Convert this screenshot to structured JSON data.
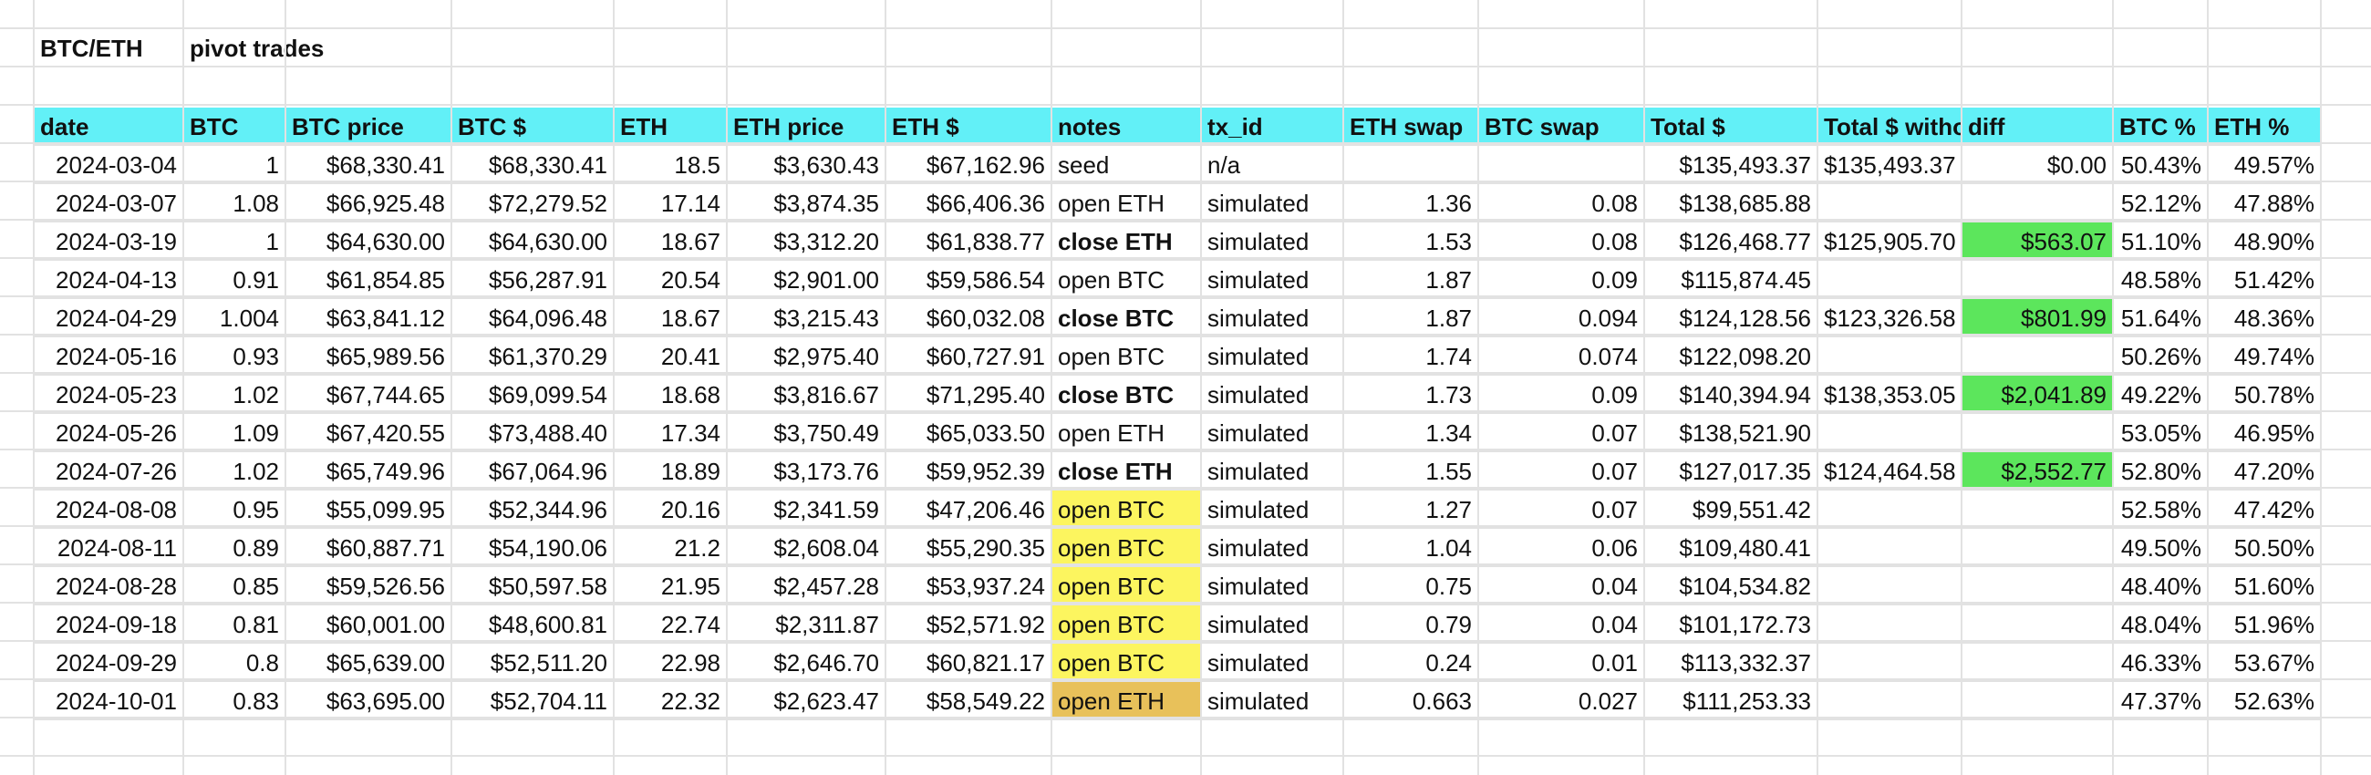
{
  "sheet": {
    "title_pair": "BTC/ETH",
    "title_label": "pivot trades"
  },
  "colors": {
    "header_bg": "#62f0f7",
    "diff_green": "#5ce65c",
    "note_yellow": "#fcf55f",
    "note_orange": "#e8c15a"
  },
  "headers": [
    "date",
    "BTC",
    "BTC price",
    "BTC $",
    "ETH",
    "ETH price",
    "ETH $",
    "notes",
    "tx_id",
    "ETH swap",
    "BTC swap",
    "Total $",
    "Total $ witho",
    "diff",
    "BTC %",
    "ETH %"
  ],
  "rows": [
    {
      "date": "2024-03-04",
      "btc": "1",
      "btc_price": "$68,330.41",
      "btc_usd": "$68,330.41",
      "eth": "18.5",
      "eth_price": "$3,630.43",
      "eth_usd": "$67,162.96",
      "notes": "seed",
      "notes_bold": false,
      "notes_color": "",
      "tx_id": "n/a",
      "eth_swap": "",
      "btc_swap": "",
      "total": "$135,493.37",
      "total_without": "$135,493.37",
      "diff": "$0.00",
      "diff_highlight": false,
      "btc_pct": "50.43%",
      "eth_pct": "49.57%"
    },
    {
      "date": "2024-03-07",
      "btc": "1.08",
      "btc_price": "$66,925.48",
      "btc_usd": "$72,279.52",
      "eth": "17.14",
      "eth_price": "$3,874.35",
      "eth_usd": "$66,406.36",
      "notes": "open ETH",
      "notes_bold": false,
      "notes_color": "",
      "tx_id": "simulated",
      "eth_swap": "1.36",
      "btc_swap": "0.08",
      "total": "$138,685.88",
      "total_without": "",
      "diff": "",
      "diff_highlight": false,
      "btc_pct": "52.12%",
      "eth_pct": "47.88%"
    },
    {
      "date": "2024-03-19",
      "btc": "1",
      "btc_price": "$64,630.00",
      "btc_usd": "$64,630.00",
      "eth": "18.67",
      "eth_price": "$3,312.20",
      "eth_usd": "$61,838.77",
      "notes": "close ETH",
      "notes_bold": true,
      "notes_color": "",
      "tx_id": "simulated",
      "eth_swap": "1.53",
      "btc_swap": "0.08",
      "total": "$126,468.77",
      "total_without": "$125,905.70",
      "diff": "$563.07",
      "diff_highlight": true,
      "btc_pct": "51.10%",
      "eth_pct": "48.90%"
    },
    {
      "date": "2024-04-13",
      "btc": "0.91",
      "btc_price": "$61,854.85",
      "btc_usd": "$56,287.91",
      "eth": "20.54",
      "eth_price": "$2,901.00",
      "eth_usd": "$59,586.54",
      "notes": "open BTC",
      "notes_bold": false,
      "notes_color": "",
      "tx_id": "simulated",
      "eth_swap": "1.87",
      "btc_swap": "0.09",
      "total": "$115,874.45",
      "total_without": "",
      "diff": "",
      "diff_highlight": false,
      "btc_pct": "48.58%",
      "eth_pct": "51.42%"
    },
    {
      "date": "2024-04-29",
      "btc": "1.004",
      "btc_price": "$63,841.12",
      "btc_usd": "$64,096.48",
      "eth": "18.67",
      "eth_price": "$3,215.43",
      "eth_usd": "$60,032.08",
      "notes": "close BTC",
      "notes_bold": true,
      "notes_color": "",
      "tx_id": "simulated",
      "eth_swap": "1.87",
      "btc_swap": "0.094",
      "total": "$124,128.56",
      "total_without": "$123,326.58",
      "diff": "$801.99",
      "diff_highlight": true,
      "btc_pct": "51.64%",
      "eth_pct": "48.36%"
    },
    {
      "date": "2024-05-16",
      "btc": "0.93",
      "btc_price": "$65,989.56",
      "btc_usd": "$61,370.29",
      "eth": "20.41",
      "eth_price": "$2,975.40",
      "eth_usd": "$60,727.91",
      "notes": "open BTC",
      "notes_bold": false,
      "notes_color": "",
      "tx_id": "simulated",
      "eth_swap": "1.74",
      "btc_swap": "0.074",
      "total": "$122,098.20",
      "total_without": "",
      "diff": "",
      "diff_highlight": false,
      "btc_pct": "50.26%",
      "eth_pct": "49.74%"
    },
    {
      "date": "2024-05-23",
      "btc": "1.02",
      "btc_price": "$67,744.65",
      "btc_usd": "$69,099.54",
      "eth": "18.68",
      "eth_price": "$3,816.67",
      "eth_usd": "$71,295.40",
      "notes": "close BTC",
      "notes_bold": true,
      "notes_color": "",
      "tx_id": "simulated",
      "eth_swap": "1.73",
      "btc_swap": "0.09",
      "total": "$140,394.94",
      "total_without": "$138,353.05",
      "diff": "$2,041.89",
      "diff_highlight": true,
      "btc_pct": "49.22%",
      "eth_pct": "50.78%"
    },
    {
      "date": "2024-05-26",
      "btc": "1.09",
      "btc_price": "$67,420.55",
      "btc_usd": "$73,488.40",
      "eth": "17.34",
      "eth_price": "$3,750.49",
      "eth_usd": "$65,033.50",
      "notes": "open ETH",
      "notes_bold": false,
      "notes_color": "",
      "tx_id": "simulated",
      "eth_swap": "1.34",
      "btc_swap": "0.07",
      "total": "$138,521.90",
      "total_without": "",
      "diff": "",
      "diff_highlight": false,
      "btc_pct": "53.05%",
      "eth_pct": "46.95%"
    },
    {
      "date": "2024-07-26",
      "btc": "1.02",
      "btc_price": "$65,749.96",
      "btc_usd": "$67,064.96",
      "eth": "18.89",
      "eth_price": "$3,173.76",
      "eth_usd": "$59,952.39",
      "notes": "close ETH",
      "notes_bold": true,
      "notes_color": "",
      "tx_id": "simulated",
      "eth_swap": "1.55",
      "btc_swap": "0.07",
      "total": "$127,017.35",
      "total_without": "$124,464.58",
      "diff": "$2,552.77",
      "diff_highlight": true,
      "btc_pct": "52.80%",
      "eth_pct": "47.20%"
    },
    {
      "date": "2024-08-08",
      "btc": "0.95",
      "btc_price": "$55,099.95",
      "btc_usd": "$52,344.96",
      "eth": "20.16",
      "eth_price": "$2,341.59",
      "eth_usd": "$47,206.46",
      "notes": "open BTC",
      "notes_bold": false,
      "notes_color": "yellow",
      "tx_id": "simulated",
      "eth_swap": "1.27",
      "btc_swap": "0.07",
      "total": "$99,551.42",
      "total_without": "",
      "diff": "",
      "diff_highlight": false,
      "btc_pct": "52.58%",
      "eth_pct": "47.42%"
    },
    {
      "date": "2024-08-11",
      "btc": "0.89",
      "btc_price": "$60,887.71",
      "btc_usd": "$54,190.06",
      "eth": "21.2",
      "eth_price": "$2,608.04",
      "eth_usd": "$55,290.35",
      "notes": "open BTC",
      "notes_bold": false,
      "notes_color": "yellow",
      "tx_id": "simulated",
      "eth_swap": "1.04",
      "btc_swap": "0.06",
      "total": "$109,480.41",
      "total_without": "",
      "diff": "",
      "diff_highlight": false,
      "btc_pct": "49.50%",
      "eth_pct": "50.50%"
    },
    {
      "date": "2024-08-28",
      "btc": "0.85",
      "btc_price": "$59,526.56",
      "btc_usd": "$50,597.58",
      "eth": "21.95",
      "eth_price": "$2,457.28",
      "eth_usd": "$53,937.24",
      "notes": "open BTC",
      "notes_bold": false,
      "notes_color": "yellow",
      "tx_id": "simulated",
      "eth_swap": "0.75",
      "btc_swap": "0.04",
      "total": "$104,534.82",
      "total_without": "",
      "diff": "",
      "diff_highlight": false,
      "btc_pct": "48.40%",
      "eth_pct": "51.60%"
    },
    {
      "date": "2024-09-18",
      "btc": "0.81",
      "btc_price": "$60,001.00",
      "btc_usd": "$48,600.81",
      "eth": "22.74",
      "eth_price": "$2,311.87",
      "eth_usd": "$52,571.92",
      "notes": "open BTC",
      "notes_bold": false,
      "notes_color": "yellow",
      "tx_id": "simulated",
      "eth_swap": "0.79",
      "btc_swap": "0.04",
      "total": "$101,172.73",
      "total_without": "",
      "diff": "",
      "diff_highlight": false,
      "btc_pct": "48.04%",
      "eth_pct": "51.96%"
    },
    {
      "date": "2024-09-29",
      "btc": "0.8",
      "btc_price": "$65,639.00",
      "btc_usd": "$52,511.20",
      "eth": "22.98",
      "eth_price": "$2,646.70",
      "eth_usd": "$60,821.17",
      "notes": "open BTC",
      "notes_bold": false,
      "notes_color": "yellow",
      "tx_id": "simulated",
      "eth_swap": "0.24",
      "btc_swap": "0.01",
      "total": "$113,332.37",
      "total_without": "",
      "diff": "",
      "diff_highlight": false,
      "btc_pct": "46.33%",
      "eth_pct": "53.67%"
    },
    {
      "date": "2024-10-01",
      "btc": "0.83",
      "btc_price": "$63,695.00",
      "btc_usd": "$52,704.11",
      "eth": "22.32",
      "eth_price": "$2,623.47",
      "eth_usd": "$58,549.22",
      "notes": "open ETH",
      "notes_bold": false,
      "notes_color": "orange",
      "tx_id": "simulated",
      "eth_swap": "0.663",
      "btc_swap": "0.027",
      "total": "$111,253.33",
      "total_without": "",
      "diff": "",
      "diff_highlight": false,
      "btc_pct": "47.37%",
      "eth_pct": "52.63%"
    }
  ]
}
